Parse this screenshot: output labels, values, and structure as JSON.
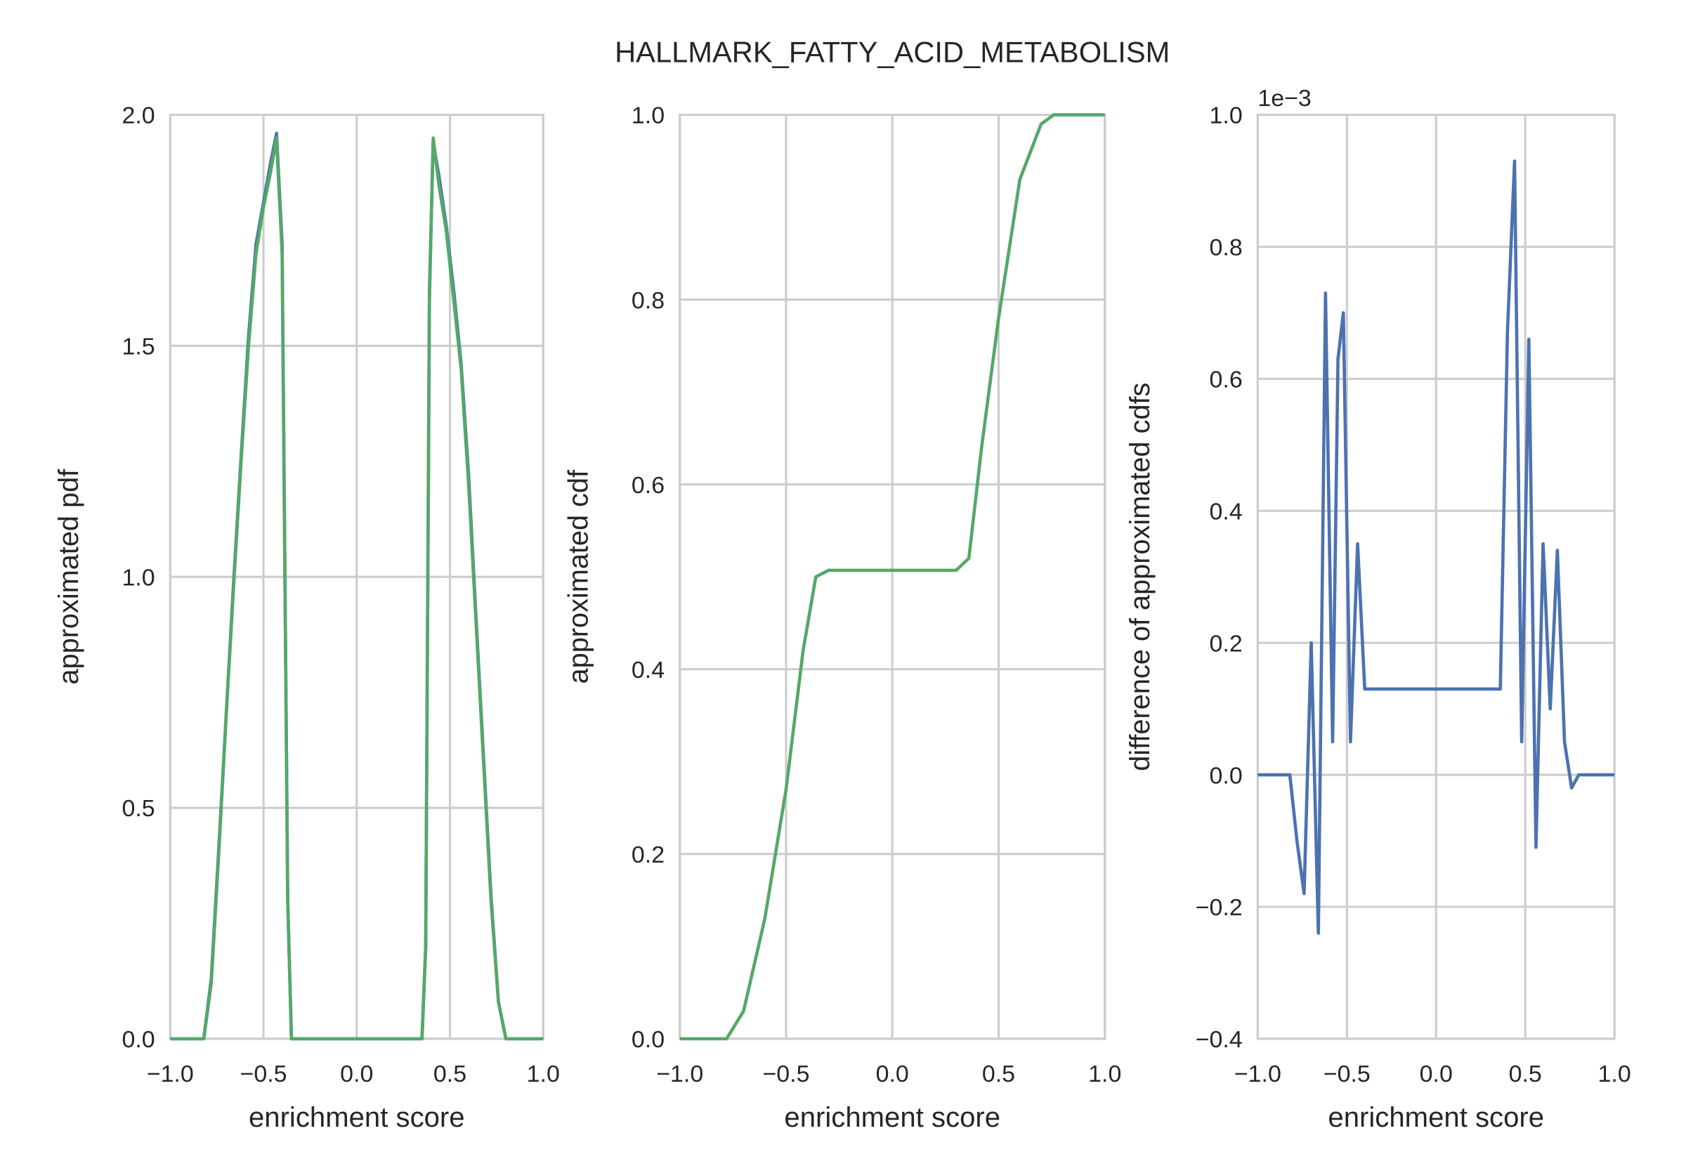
{
  "title": "HALLMARK_FATTY_ACID_METABOLISM",
  "chart_data": [
    {
      "type": "line",
      "xlabel": "enrichment score",
      "ylabel": "approximated pdf",
      "grid": true,
      "x": [
        -1,
        -0.82,
        -0.78,
        -0.74,
        -0.7,
        -0.66,
        -0.62,
        -0.58,
        -0.54,
        -0.5,
        -0.46,
        -0.43,
        -0.4,
        -0.37,
        -0.35,
        0.35,
        0.37,
        0.39,
        0.41,
        0.44,
        0.48,
        0.52,
        0.56,
        0.6,
        0.64,
        0.68,
        0.72,
        0.76,
        0.8,
        1
      ],
      "series": [
        {
          "color": "#4c72b0",
          "values": [
            0,
            0,
            0.13,
            0.41,
            0.7,
            0.99,
            1.26,
            1.52,
            1.72,
            1.81,
            1.9,
            1.96,
            1.72,
            0.3,
            0,
            0,
            0.2,
            1.62,
            1.94,
            1.87,
            1.76,
            1.62,
            1.46,
            1.22,
            0.91,
            0.61,
            0.31,
            0.08,
            0,
            0
          ]
        },
        {
          "color": "#55a868",
          "values": [
            0,
            0,
            0.12,
            0.4,
            0.7,
            0.98,
            1.25,
            1.5,
            1.7,
            1.8,
            1.88,
            1.95,
            1.7,
            0.3,
            0,
            0,
            0.2,
            1.6,
            1.95,
            1.85,
            1.75,
            1.6,
            1.45,
            1.2,
            0.9,
            0.6,
            0.3,
            0.08,
            0,
            0
          ]
        }
      ],
      "xlim": [
        -1,
        1
      ],
      "xticks": [
        {
          "value": -1,
          "label": "−1.0"
        },
        {
          "value": -0.5,
          "label": "−0.5"
        },
        {
          "value": 0,
          "label": "0.0"
        },
        0.5,
        {
          "value": 1,
          "label": "1.0"
        }
      ],
      "ylim": [
        0,
        2
      ],
      "yticks": [
        {
          "value": 0,
          "label": "0.0"
        },
        0.5,
        {
          "value": 1,
          "label": "1.0"
        },
        1.5,
        {
          "value": 2,
          "label": "2.0"
        }
      ]
    },
    {
      "type": "line",
      "xlabel": "enrichment score",
      "ylabel": "approximated cdf",
      "grid": true,
      "x": [
        -1,
        -0.78,
        -0.7,
        -0.6,
        -0.5,
        -0.42,
        -0.36,
        -0.3,
        0,
        0.3,
        0.36,
        0.42,
        0.5,
        0.6,
        0.7,
        0.76,
        1
      ],
      "series": [
        {
          "color": "#55a868",
          "values": [
            0,
            0,
            0.03,
            0.13,
            0.27,
            0.42,
            0.5,
            0.507,
            0.507,
            0.507,
            0.52,
            0.64,
            0.78,
            0.93,
            0.99,
            1,
            1
          ]
        }
      ],
      "xlim": [
        -1,
        1
      ],
      "xticks": [
        {
          "value": -1,
          "label": "−1.0"
        },
        {
          "value": -0.5,
          "label": "−0.5"
        },
        {
          "value": 0,
          "label": "0.0"
        },
        0.5,
        {
          "value": 1,
          "label": "1.0"
        }
      ],
      "ylim": [
        0,
        1
      ],
      "yticks": [
        {
          "value": 0,
          "label": "0.0"
        },
        0.2,
        0.4,
        0.6,
        0.8,
        {
          "value": 1,
          "label": "1.0"
        }
      ]
    },
    {
      "type": "line",
      "xlabel": "enrichment score",
      "ylabel": "difference of approximated cdfs",
      "grid": true,
      "offset_label": "1e−3",
      "x": [
        -1,
        -0.82,
        -0.78,
        -0.74,
        -0.7,
        -0.66,
        -0.62,
        -0.58,
        -0.55,
        -0.52,
        -0.48,
        -0.44,
        -0.4,
        0.3,
        0.36,
        0.4,
        0.44,
        0.48,
        0.52,
        0.56,
        0.6,
        0.64,
        0.68,
        0.72,
        0.76,
        0.8,
        1
      ],
      "series": [
        {
          "color": "#4c72b0",
          "values": [
            0,
            0,
            -0.1,
            -0.18,
            0.2,
            -0.24,
            0.73,
            0.05,
            0.63,
            0.7,
            0.05,
            0.35,
            0.13,
            0.13,
            0.13,
            0.67,
            0.93,
            0.05,
            0.66,
            -0.11,
            0.35,
            0.1,
            0.34,
            0.05,
            -0.02,
            0,
            0
          ]
        }
      ],
      "xlim": [
        -1,
        1
      ],
      "xticks": [
        {
          "value": -1,
          "label": "−1.0"
        },
        {
          "value": -0.5,
          "label": "−0.5"
        },
        {
          "value": 0,
          "label": "0.0"
        },
        0.5,
        {
          "value": 1,
          "label": "1.0"
        }
      ],
      "ylim": [
        -0.4,
        1
      ],
      "yticks": [
        {
          "value": -0.4,
          "label": "−0.4"
        },
        {
          "value": -0.2,
          "label": "−0.2"
        },
        {
          "value": 0,
          "label": "0.0"
        },
        0.2,
        0.4,
        0.6,
        0.8,
        {
          "value": 1,
          "label": "1.0"
        }
      ]
    }
  ]
}
